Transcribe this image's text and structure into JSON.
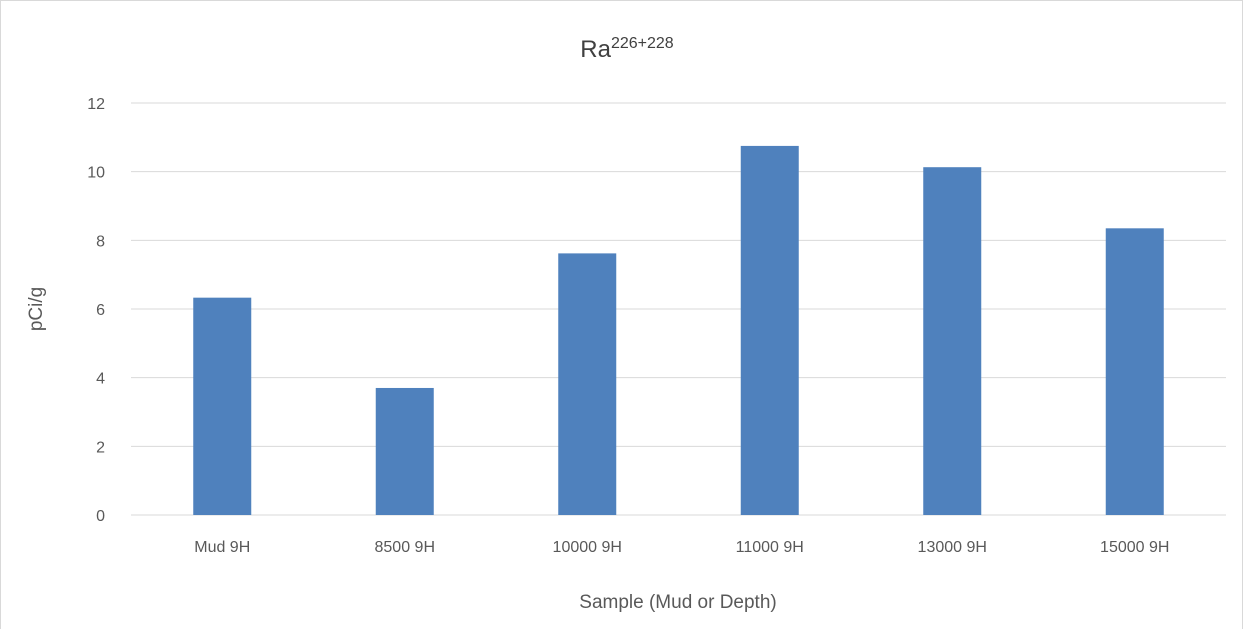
{
  "chart_data": {
    "type": "bar",
    "title": "Ra",
    "title_superscript": "226+228",
    "xlabel": "Sample (Mud or Depth)",
    "ylabel": "pCi/g",
    "categories": [
      "Mud 9H",
      "8500 9H",
      "10000 9H",
      "11000 9H",
      "13000 9H",
      "15000 9H"
    ],
    "values": [
      6.33,
      3.7,
      7.62,
      10.75,
      10.13,
      8.35
    ],
    "ylim": [
      0,
      12
    ],
    "yticks": [
      0,
      2,
      4,
      6,
      8,
      10,
      12
    ],
    "grid": true,
    "legend": "none",
    "bar_color": "#4f81bd",
    "gridline_color": "#d9d9d9"
  }
}
